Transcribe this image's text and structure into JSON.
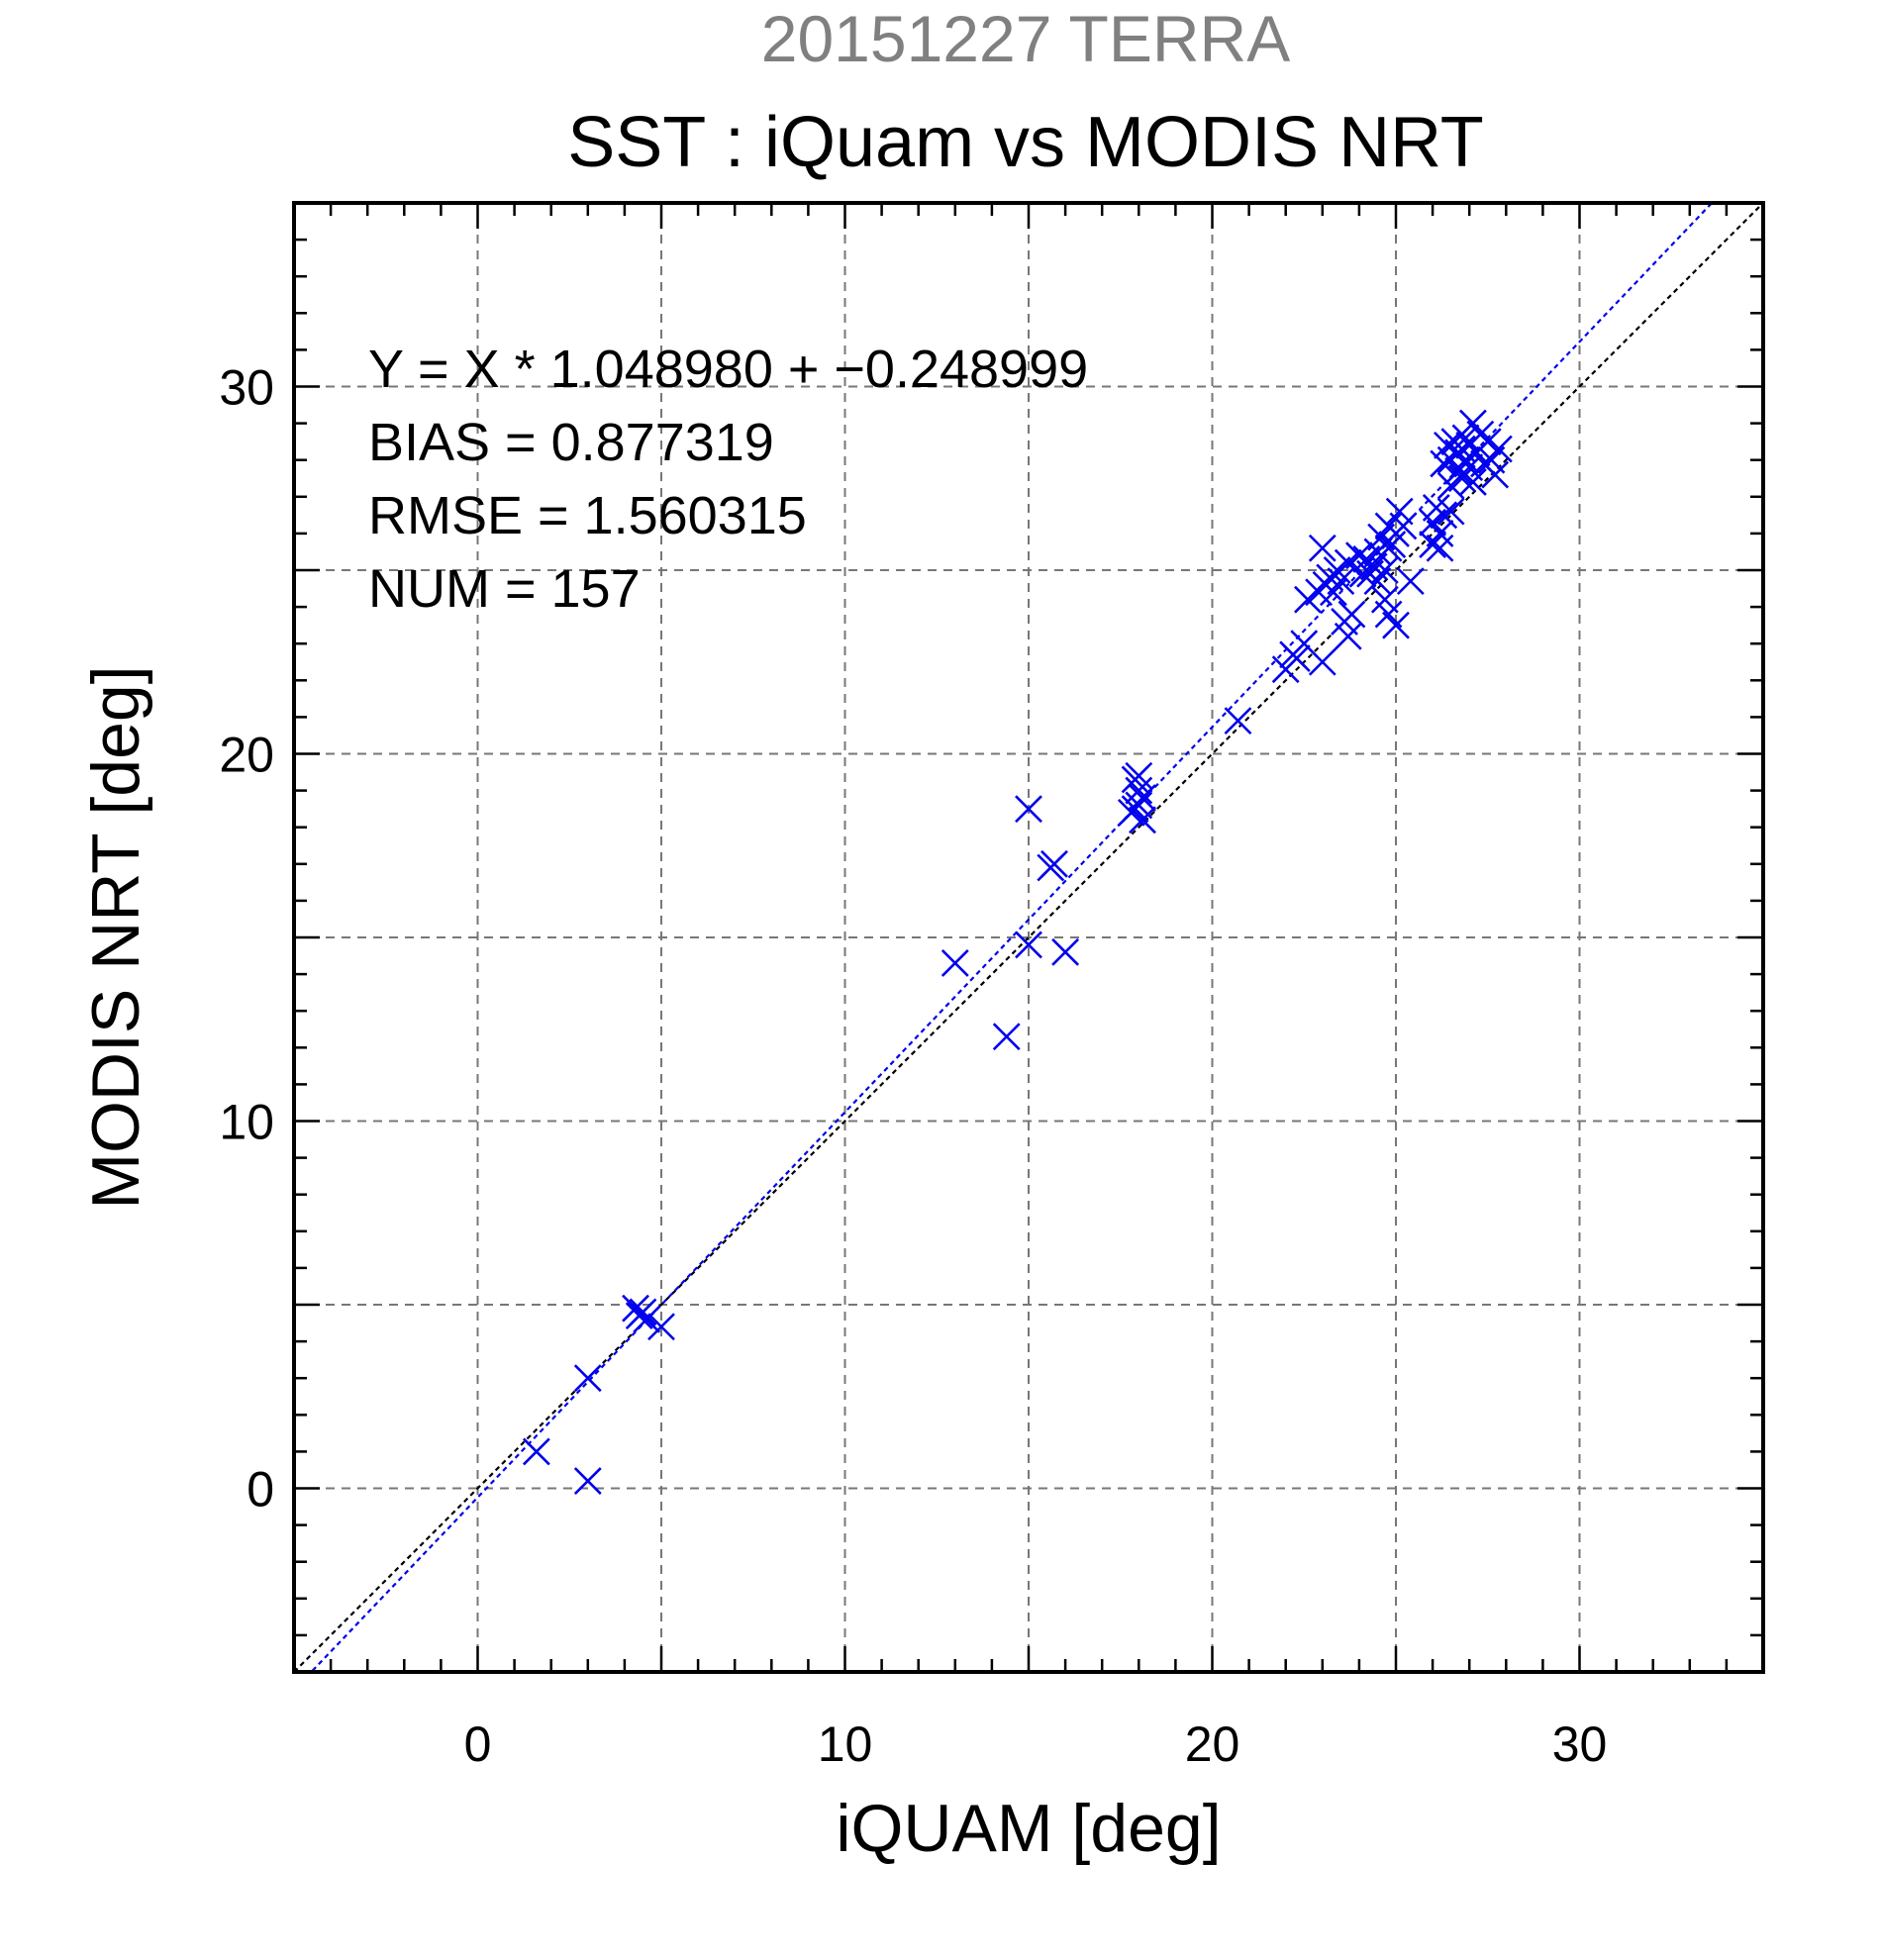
{
  "title_top": "20151227 TERRA",
  "title_main": "SST : iQuam vs MODIS NRT",
  "stats": [
    "Y = X * 1.048980 + −0.248999",
    "BIAS = 0.877319",
    "RMSE = 1.560315",
    "NUM = 157"
  ],
  "chart_data": {
    "type": "scatter",
    "title": "SST : iQuam vs MODIS NRT",
    "subtitle": "20151227 TERRA",
    "xlabel": "iQUAM [deg]",
    "ylabel": "MODIS NRT [deg]",
    "xlim": [
      -5,
      35
    ],
    "ylim": [
      -5,
      35
    ],
    "xticks": [
      0,
      10,
      20,
      30
    ],
    "yticks": [
      0,
      10,
      20,
      30
    ],
    "xtick_labels": [
      "0",
      "10",
      "20",
      "30"
    ],
    "ytick_labels": [
      "0",
      "10",
      "20",
      "30"
    ],
    "grid": true,
    "marker": "x",
    "marker_color": "#0000ee",
    "fit": {
      "slope": 1.04898,
      "intercept": -0.248999,
      "color": "#0000ee"
    },
    "reference_line": {
      "slope": 1,
      "intercept": 0,
      "color": "#000000"
    },
    "points": [
      [
        1.6,
        1.0
      ],
      [
        3.0,
        3.0
      ],
      [
        3.0,
        0.2
      ],
      [
        4.3,
        4.9
      ],
      [
        4.4,
        4.7
      ],
      [
        4.5,
        4.8
      ],
      [
        4.6,
        4.6
      ],
      [
        5.0,
        4.4
      ],
      [
        13.0,
        14.3
      ],
      [
        14.4,
        12.3
      ],
      [
        15.0,
        18.5
      ],
      [
        15.0,
        14.8
      ],
      [
        15.6,
        16.9
      ],
      [
        15.7,
        17.0
      ],
      [
        16.0,
        14.6
      ],
      [
        17.8,
        18.4
      ],
      [
        17.9,
        19.3
      ],
      [
        18.0,
        18.6
      ],
      [
        18.0,
        19.0
      ],
      [
        18.1,
        18.8
      ],
      [
        17.9,
        18.5
      ],
      [
        18.0,
        19.4
      ],
      [
        18.1,
        18.2
      ],
      [
        20.7,
        20.9
      ],
      [
        22.0,
        22.3
      ],
      [
        22.2,
        22.7
      ],
      [
        22.3,
        22.6
      ],
      [
        22.5,
        23.0
      ],
      [
        22.6,
        24.2
      ],
      [
        22.9,
        24.4
      ],
      [
        23.0,
        25.6
      ],
      [
        23.0,
        22.5
      ],
      [
        23.1,
        24.6
      ],
      [
        23.2,
        24.8
      ],
      [
        23.3,
        24.4
      ],
      [
        23.4,
        25.0
      ],
      [
        23.5,
        24.7
      ],
      [
        23.6,
        23.6
      ],
      [
        23.7,
        25.2
      ],
      [
        23.7,
        23.2
      ],
      [
        23.8,
        23.8
      ],
      [
        24.0,
        25.4
      ],
      [
        24.1,
        24.9
      ],
      [
        24.2,
        25.3
      ],
      [
        24.3,
        24.9
      ],
      [
        24.4,
        25.1
      ],
      [
        24.5,
        24.7
      ],
      [
        24.5,
        25.5
      ],
      [
        24.6,
        25.9
      ],
      [
        24.7,
        24.2
      ],
      [
        24.7,
        25.0
      ],
      [
        24.8,
        25.6
      ],
      [
        24.8,
        26.2
      ],
      [
        24.8,
        23.8
      ],
      [
        24.9,
        25.7
      ],
      [
        25.0,
        26.0
      ],
      [
        25.0,
        23.5
      ],
      [
        25.1,
        26.6
      ],
      [
        25.2,
        26.2
      ],
      [
        25.4,
        24.7
      ],
      [
        26.0,
        26.3
      ],
      [
        26.0,
        25.7
      ],
      [
        26.1,
        26.7
      ],
      [
        26.2,
        26.0
      ],
      [
        26.2,
        25.6
      ],
      [
        26.3,
        26.5
      ],
      [
        26.3,
        27.9
      ],
      [
        26.4,
        28.4
      ],
      [
        26.5,
        28.0
      ],
      [
        26.5,
        27.3
      ],
      [
        26.5,
        26.6
      ],
      [
        26.6,
        28.5
      ],
      [
        26.7,
        28.2
      ],
      [
        26.7,
        27.7
      ],
      [
        26.8,
        28.3
      ],
      [
        26.8,
        27.5
      ],
      [
        26.9,
        28.6
      ],
      [
        26.9,
        28.0
      ],
      [
        27.0,
        27.8
      ],
      [
        27.0,
        28.4
      ],
      [
        27.1,
        29.0
      ],
      [
        27.1,
        27.4
      ],
      [
        27.2,
        28.2
      ],
      [
        27.3,
        28.7
      ],
      [
        27.4,
        27.9
      ],
      [
        27.5,
        28.5
      ],
      [
        27.6,
        28.0
      ],
      [
        27.7,
        27.6
      ],
      [
        27.8,
        28.3
      ]
    ]
  }
}
